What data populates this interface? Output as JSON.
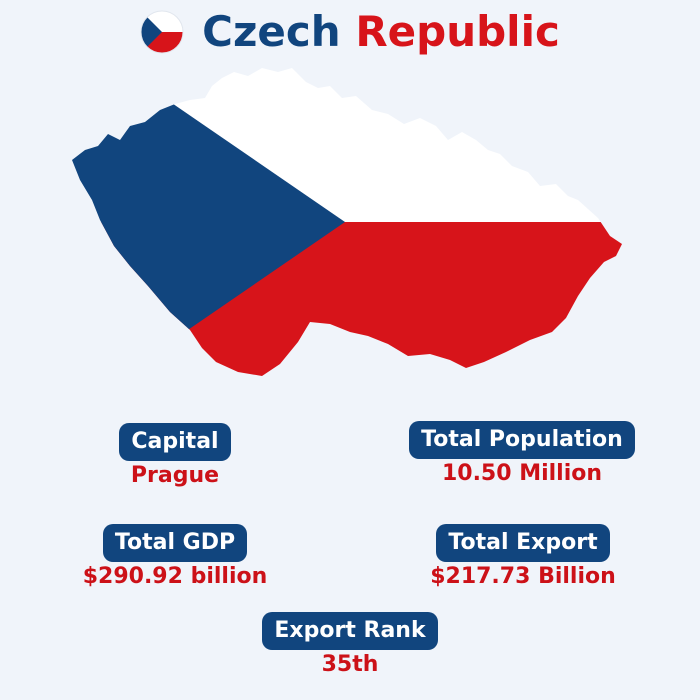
{
  "header": {
    "title_part1": "Czech",
    "title_part2": "Republic",
    "flag_icon": "czech-flag-icon"
  },
  "colors": {
    "flag_blue": "#11457e",
    "flag_red": "#d7141a",
    "flag_white": "#ffffff",
    "background": "#f0f4fa"
  },
  "stats": {
    "capital": {
      "label": "Capital",
      "value": "Prague"
    },
    "population": {
      "label": "Total Population",
      "value": "10.50 Million"
    },
    "gdp": {
      "label": "Total GDP",
      "value": "$290.92 billion"
    },
    "export": {
      "label": "Total Export",
      "value": "$217.73 Billion"
    },
    "export_rank": {
      "label": "Export Rank",
      "value": "35th"
    }
  }
}
